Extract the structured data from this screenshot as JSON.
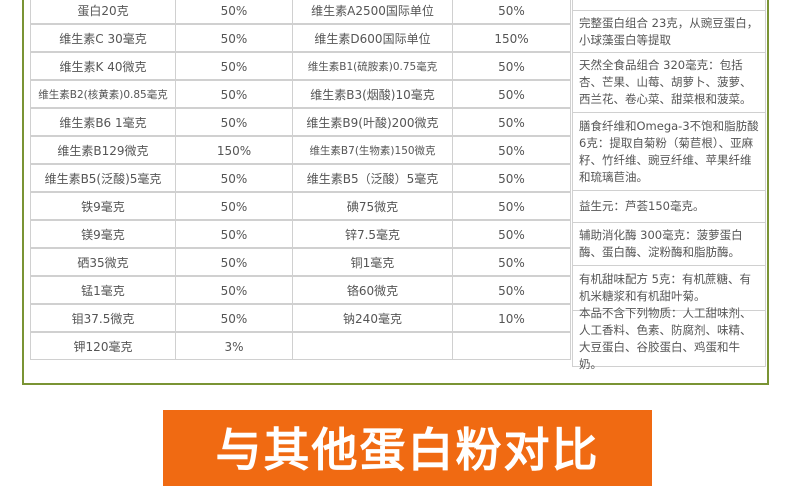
{
  "table": {
    "rows": [
      [
        "蛋白20克",
        "50%",
        "维生素A2500国际单位",
        "50%"
      ],
      [
        "维生素C 30毫克",
        "50%",
        "维生素D600国际单位",
        "150%"
      ],
      [
        "维生素K 40微克",
        "50%",
        "维生素B1(硫胺素)0.75毫克",
        "50%"
      ],
      [
        "维生素B2(核黄素)0.85毫克",
        "50%",
        "维生素B3(烟酸)10毫克",
        "50%"
      ],
      [
        "维生素B6 1毫克",
        "50%",
        "维生素B9(叶酸)200微克",
        "50%"
      ],
      [
        "维生素B129微克",
        "150%",
        "维生素B7(生物素)150微克",
        "50%"
      ],
      [
        "维生素B5(泛酸)5毫克",
        "50%",
        "维生素B5（泛酸）5毫克",
        "50%"
      ],
      [
        "铁9毫克",
        "50%",
        "碘75微克",
        "50%"
      ],
      [
        "镁9毫克",
        "50%",
        "锌7.5毫克",
        "50%"
      ],
      [
        "硒35微克",
        "50%",
        "铜1毫克",
        "50%"
      ],
      [
        "锰1毫克",
        "50%",
        "铬60微克",
        "50%"
      ],
      [
        "钼37.5微克",
        "50%",
        "钠240毫克",
        "10%"
      ],
      [
        "钾120毫克",
        "3%"
      ]
    ]
  },
  "notes": [
    "完整蛋白组合 23克，从豌豆蛋白，小球藻蛋白等提取",
    "天然全食品组合 320毫克：包括杏、芒果、山莓、胡萝卜、菠萝、西兰花、卷心菜、甜菜根和菠菜。",
    "膳食纤维和Omega-3不饱和脂肪酸 6克：提取自菊粉（菊苣根）、亚麻籽、竹纤维、豌豆纤维、苹果纤维和琉璃苣油。",
    "益生元：芦荟150毫克。",
    "辅助消化酶 300毫克：菠萝蛋白酶、蛋白酶、淀粉酶和脂肪酶。",
    "有机甜味配方 5克：有机蔗糖、有机米糖浆和有机甜叶菊。",
    "本品不含下列物质：人工甜味剂、人工香料、色素、防腐剂、味精、大豆蛋白、谷胶蛋白、鸡蛋和牛奶。"
  ],
  "banner": "与其他蛋白粉对比"
}
